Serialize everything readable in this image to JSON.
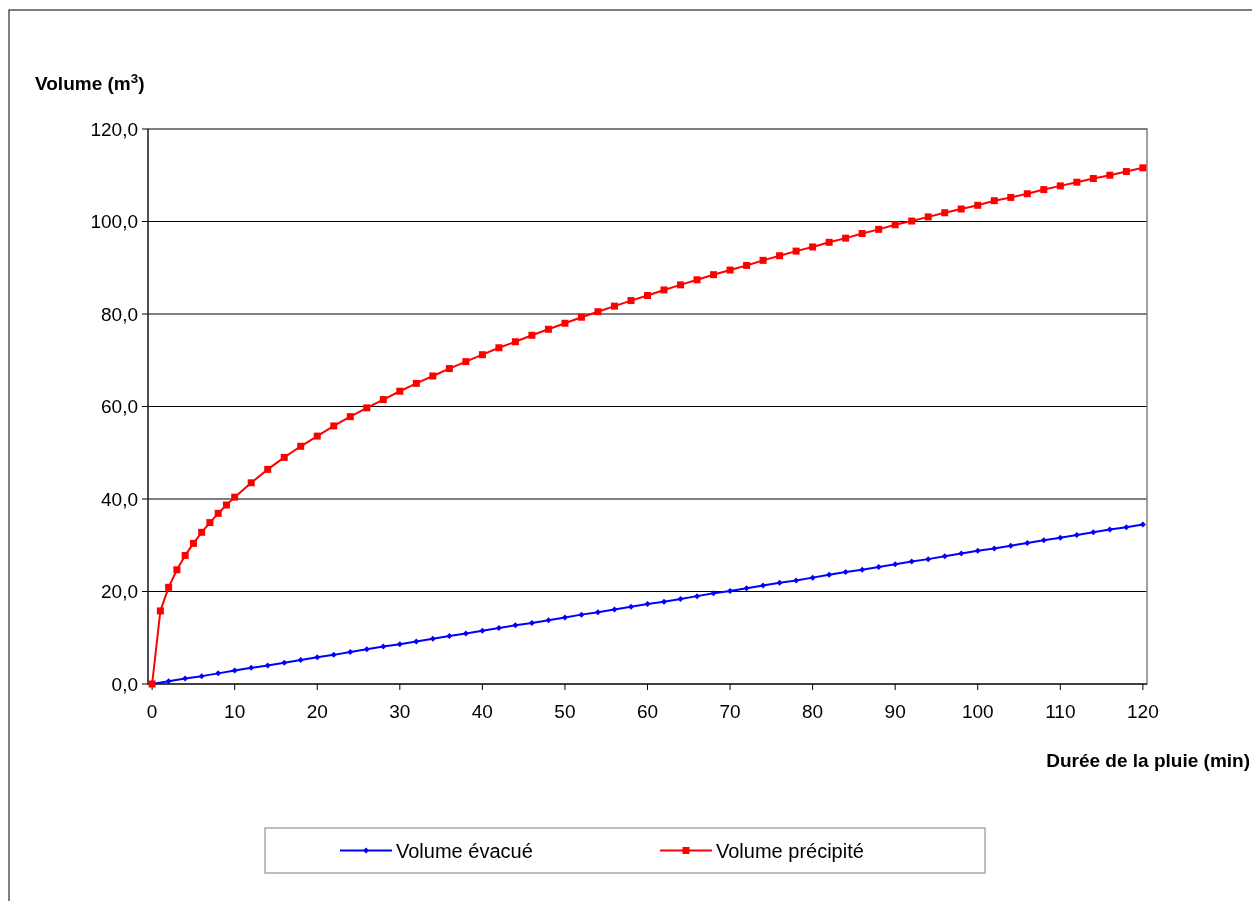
{
  "chart_data": {
    "type": "line",
    "xlabel": "Durée de la pluie (min)",
    "ylabel": "Volume (m$^{3}$)",
    "xlim": [
      -0.5,
      120.5
    ],
    "xticks": [
      0,
      10,
      20,
      30,
      40,
      50,
      60,
      70,
      80,
      90,
      100,
      110,
      120
    ],
    "ylim": [
      0,
      120
    ],
    "yticks": [
      {
        "value": 0,
        "label": "0,0"
      },
      {
        "value": 20,
        "label": "20,0"
      },
      {
        "value": 40,
        "label": "40,0"
      },
      {
        "value": 60,
        "label": "60,0"
      },
      {
        "value": 80,
        "label": "80,0"
      },
      {
        "value": 100,
        "label": "100,0"
      },
      {
        "value": 120,
        "label": "120,0"
      }
    ],
    "grid": "y",
    "legend": "bottom",
    "line_style": "solid",
    "series": [
      {
        "name": "Volume évacué",
        "color": "#0000ff",
        "marker": "diamond",
        "x": [
          0,
          2,
          4,
          6,
          8,
          10,
          12,
          14,
          16,
          18,
          20,
          22,
          24,
          26,
          28,
          30,
          32,
          34,
          36,
          38,
          40,
          42,
          44,
          46,
          48,
          50,
          52,
          54,
          56,
          58,
          60,
          62,
          64,
          66,
          68,
          70,
          72,
          74,
          76,
          78,
          80,
          82,
          84,
          86,
          88,
          90,
          92,
          94,
          96,
          98,
          100,
          102,
          104,
          106,
          108,
          110,
          112,
          114,
          116,
          118,
          120
        ],
        "values": [
          0,
          0.6,
          1.2,
          1.7,
          2.3,
          2.9,
          3.5,
          4.0,
          4.6,
          5.2,
          5.8,
          6.3,
          6.9,
          7.5,
          8.1,
          8.6,
          9.2,
          9.8,
          10.4,
          10.9,
          11.5,
          12.1,
          12.7,
          13.2,
          13.8,
          14.4,
          15.0,
          15.5,
          16.1,
          16.7,
          17.3,
          17.8,
          18.4,
          19.0,
          19.6,
          20.1,
          20.7,
          21.3,
          21.9,
          22.4,
          23.0,
          23.6,
          24.2,
          24.7,
          25.3,
          25.9,
          26.5,
          27.0,
          27.6,
          28.2,
          28.8,
          29.3,
          29.9,
          30.5,
          31.1,
          31.6,
          32.2,
          32.8,
          33.4,
          33.9,
          34.5
        ]
      },
      {
        "name": "Volume précipité",
        "color": "#ff0000",
        "marker": "square",
        "x": [
          0,
          1,
          2,
          3,
          4,
          5,
          6,
          7,
          8,
          9,
          10,
          12,
          14,
          16,
          18,
          20,
          22,
          24,
          26,
          28,
          30,
          32,
          34,
          36,
          38,
          40,
          42,
          44,
          46,
          48,
          50,
          52,
          54,
          56,
          58,
          60,
          62,
          64,
          66,
          68,
          70,
          72,
          74,
          76,
          78,
          80,
          82,
          84,
          86,
          88,
          90,
          92,
          94,
          96,
          98,
          100,
          102,
          104,
          106,
          108,
          110,
          112,
          114,
          116,
          118,
          120
        ],
        "values": [
          0,
          15.8,
          20.9,
          24.7,
          27.8,
          30.4,
          32.8,
          34.9,
          36.9,
          38.7,
          40.4,
          43.5,
          46.4,
          49.0,
          51.4,
          53.6,
          55.8,
          57.8,
          59.7,
          61.5,
          63.3,
          65.0,
          66.6,
          68.2,
          69.7,
          71.2,
          72.7,
          74.0,
          75.4,
          76.7,
          78.0,
          79.3,
          80.5,
          81.7,
          82.9,
          84.0,
          85.2,
          86.3,
          87.4,
          88.5,
          89.5,
          90.5,
          91.6,
          92.6,
          93.6,
          94.5,
          95.5,
          96.4,
          97.4,
          98.3,
          99.3,
          100.1,
          101.0,
          101.9,
          102.7,
          103.5,
          104.5,
          105.2,
          106.0,
          106.9,
          107.7,
          108.5,
          109.3,
          110.0,
          110.8,
          111.6
        ]
      }
    ]
  }
}
